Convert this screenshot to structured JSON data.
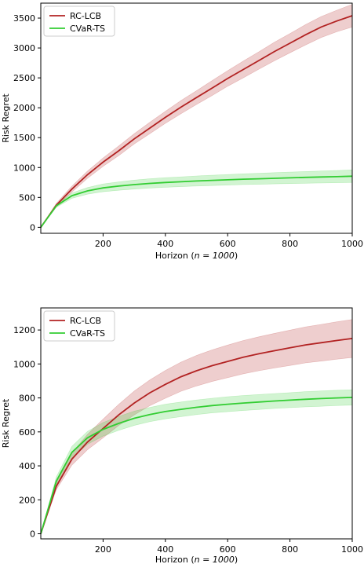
{
  "chart_data": [
    {
      "type": "line",
      "xlabel_prefix": "Horizon (",
      "xlabel_math": "n = 1000",
      "xlabel_suffix": ")",
      "ylabel": "Risk Regret",
      "xlim": [
        0,
        1000
      ],
      "ylim": [
        -100,
        3750
      ],
      "xticks": [
        200,
        400,
        600,
        800,
        1000
      ],
      "yticks": [
        0,
        500,
        1000,
        1500,
        2000,
        2500,
        3000,
        3500
      ],
      "legend_position": "upper-left",
      "grid": false,
      "series": [
        {
          "name": "RC-LCB",
          "color": "#b22222",
          "x": [
            0,
            50,
            100,
            150,
            200,
            250,
            300,
            350,
            400,
            450,
            500,
            550,
            600,
            650,
            700,
            750,
            800,
            850,
            900,
            950,
            1000
          ],
          "y": [
            0,
            370,
            640,
            880,
            1090,
            1280,
            1480,
            1660,
            1840,
            2010,
            2170,
            2330,
            2490,
            2640,
            2790,
            2940,
            3080,
            3220,
            3350,
            3450,
            3540
          ],
          "band": [
            0,
            30,
            50,
            60,
            70,
            80,
            85,
            95,
            100,
            110,
            115,
            125,
            130,
            140,
            145,
            155,
            160,
            170,
            175,
            180,
            190
          ]
        },
        {
          "name": "CVaR-TS",
          "color": "#32cd32",
          "x": [
            0,
            50,
            100,
            150,
            200,
            250,
            300,
            350,
            400,
            450,
            500,
            550,
            600,
            650,
            700,
            750,
            800,
            850,
            900,
            950,
            1000
          ],
          "y": [
            0,
            360,
            530,
            610,
            660,
            690,
            715,
            735,
            750,
            762,
            775,
            785,
            795,
            805,
            812,
            820,
            828,
            835,
            842,
            848,
            855
          ],
          "band": [
            0,
            25,
            45,
            55,
            65,
            70,
            75,
            78,
            80,
            82,
            84,
            86,
            88,
            90,
            92,
            94,
            96,
            98,
            100,
            102,
            105
          ]
        }
      ]
    },
    {
      "type": "line",
      "xlabel_prefix": "Horizon (",
      "xlabel_math": "n = 1000",
      "xlabel_suffix": ")",
      "ylabel": "Risk Regret",
      "xlim": [
        0,
        1000
      ],
      "ylim": [
        -30,
        1330
      ],
      "xticks": [
        200,
        400,
        600,
        800,
        1000
      ],
      "yticks": [
        0,
        200,
        400,
        600,
        800,
        1000,
        1200
      ],
      "legend_position": "upper-left",
      "grid": false,
      "series": [
        {
          "name": "RC-LCB",
          "color": "#b22222",
          "x": [
            0,
            50,
            100,
            150,
            200,
            250,
            300,
            350,
            400,
            450,
            500,
            550,
            600,
            650,
            700,
            750,
            800,
            850,
            900,
            950,
            1000
          ],
          "y": [
            0,
            280,
            440,
            540,
            620,
            700,
            770,
            830,
            880,
            925,
            960,
            990,
            1015,
            1040,
            1060,
            1078,
            1095,
            1112,
            1125,
            1138,
            1150
          ],
          "band": [
            0,
            20,
            35,
            45,
            55,
            62,
            70,
            76,
            82,
            86,
            90,
            93,
            96,
            98,
            100,
            102,
            104,
            106,
            108,
            110,
            112
          ]
        },
        {
          "name": "CVaR-TS",
          "color": "#32cd32",
          "x": [
            0,
            50,
            100,
            150,
            200,
            250,
            300,
            350,
            400,
            450,
            500,
            550,
            600,
            650,
            700,
            750,
            800,
            850,
            900,
            950,
            1000
          ],
          "y": [
            0,
            310,
            480,
            565,
            615,
            650,
            680,
            702,
            720,
            733,
            745,
            755,
            763,
            770,
            776,
            782,
            787,
            792,
            796,
            800,
            803
          ],
          "band": [
            0,
            25,
            35,
            38,
            40,
            41,
            42,
            42,
            43,
            43,
            43,
            43,
            44,
            44,
            44,
            44,
            44,
            45,
            45,
            45,
            45
          ]
        }
      ]
    }
  ]
}
